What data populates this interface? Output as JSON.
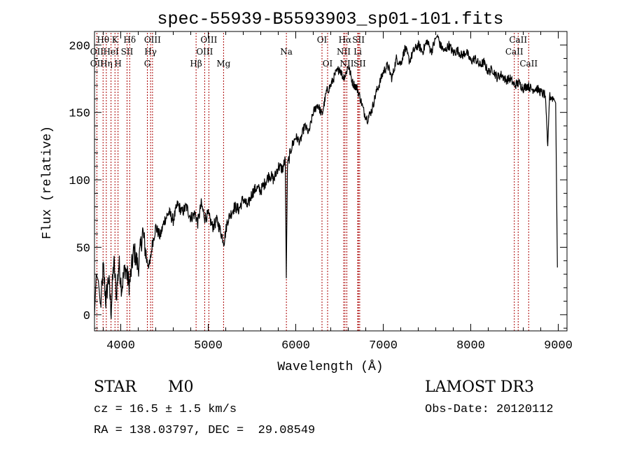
{
  "chart_data": {
    "type": "line",
    "title": "spec-55939-B5593903_sp01-101.fits",
    "xlabel": "Wavelength (Å)",
    "ylabel": "Flux (relative)",
    "xlim": [
      3700,
      9100
    ],
    "ylim": [
      -12,
      210
    ],
    "x_ticks": [
      4000,
      5000,
      6000,
      7000,
      8000,
      9000
    ],
    "y_ticks": [
      0,
      50,
      100,
      150,
      200
    ],
    "series": [
      {
        "name": "flux",
        "points": [
          [
            3700,
            0
          ],
          [
            3720,
            30
          ],
          [
            3745,
            25
          ],
          [
            3770,
            5
          ],
          [
            3800,
            35
          ],
          [
            3830,
            10
          ],
          [
            3860,
            28
          ],
          [
            3890,
            3
          ],
          [
            3920,
            40
          ],
          [
            3950,
            15
          ],
          [
            3980,
            38
          ],
          [
            4010,
            20
          ],
          [
            4050,
            35
          ],
          [
            4100,
            22
          ],
          [
            4150,
            48
          ],
          [
            4200,
            35
          ],
          [
            4250,
            62
          ],
          [
            4300,
            40
          ],
          [
            4330,
            36
          ],
          [
            4360,
            52
          ],
          [
            4400,
            65
          ],
          [
            4450,
            58
          ],
          [
            4500,
            70
          ],
          [
            4550,
            76
          ],
          [
            4600,
            70
          ],
          [
            4650,
            82
          ],
          [
            4700,
            76
          ],
          [
            4750,
            80
          ],
          [
            4800,
            72
          ],
          [
            4850,
            75
          ],
          [
            4880,
            68
          ],
          [
            4920,
            82
          ],
          [
            4960,
            72
          ],
          [
            5000,
            74
          ],
          [
            5050,
            65
          ],
          [
            5100,
            70
          ],
          [
            5150,
            60
          ],
          [
            5180,
            54
          ],
          [
            5220,
            70
          ],
          [
            5260,
            75
          ],
          [
            5300,
            80
          ],
          [
            5350,
            78
          ],
          [
            5400,
            86
          ],
          [
            5450,
            80
          ],
          [
            5500,
            90
          ],
          [
            5550,
            94
          ],
          [
            5600,
            92
          ],
          [
            5650,
            98
          ],
          [
            5700,
            104
          ],
          [
            5750,
            100
          ],
          [
            5800,
            110
          ],
          [
            5850,
            108
          ],
          [
            5880,
            115
          ],
          [
            5892,
            27
          ],
          [
            5905,
            110
          ],
          [
            5950,
            124
          ],
          [
            6000,
            132
          ],
          [
            6050,
            128
          ],
          [
            6100,
            140
          ],
          [
            6150,
            135
          ],
          [
            6200,
            150
          ],
          [
            6250,
            156
          ],
          [
            6300,
            148
          ],
          [
            6350,
            165
          ],
          [
            6400,
            170
          ],
          [
            6450,
            178
          ],
          [
            6500,
            183
          ],
          [
            6540,
            176
          ],
          [
            6570,
            178
          ],
          [
            6600,
            185
          ],
          [
            6650,
            172
          ],
          [
            6700,
            168
          ],
          [
            6740,
            160
          ],
          [
            6780,
            150
          ],
          [
            6820,
            145
          ],
          [
            6870,
            152
          ],
          [
            6920,
            165
          ],
          [
            6960,
            172
          ],
          [
            7000,
            180
          ],
          [
            7050,
            185
          ],
          [
            7100,
            175
          ],
          [
            7150,
            190
          ],
          [
            7200,
            186
          ],
          [
            7250,
            198
          ],
          [
            7300,
            188
          ],
          [
            7350,
            196
          ],
          [
            7400,
            200
          ],
          [
            7450,
            195
          ],
          [
            7500,
            203
          ],
          [
            7550,
            195
          ],
          [
            7600,
            205
          ],
          [
            7620,
            207
          ],
          [
            7650,
            200
          ],
          [
            7700,
            195
          ],
          [
            7750,
            200
          ],
          [
            7800,
            194
          ],
          [
            7850,
            196
          ],
          [
            7900,
            192
          ],
          [
            7950,
            195
          ],
          [
            8000,
            188
          ],
          [
            8050,
            190
          ],
          [
            8100,
            185
          ],
          [
            8150,
            187
          ],
          [
            8200,
            180
          ],
          [
            8250,
            182
          ],
          [
            8300,
            176
          ],
          [
            8350,
            178
          ],
          [
            8400,
            174
          ],
          [
            8450,
            175
          ],
          [
            8500,
            170
          ],
          [
            8550,
            172
          ],
          [
            8600,
            168
          ],
          [
            8650,
            170
          ],
          [
            8700,
            167
          ],
          [
            8750,
            168
          ],
          [
            8800,
            165
          ],
          [
            8850,
            163
          ],
          [
            8880,
            125
          ],
          [
            8900,
            162
          ],
          [
            8950,
            160
          ],
          [
            8970,
            157
          ],
          [
            8990,
            35
          ]
        ]
      }
    ],
    "spectral_lines": [
      {
        "label": "Hθ",
        "wavelength": 3798,
        "row": 1
      },
      {
        "label": "OII",
        "wavelength": 3727,
        "row": 2
      },
      {
        "label": "OII",
        "wavelength": 3727,
        "row": 3
      },
      {
        "label": "Hη",
        "wavelength": 3835,
        "row": 3
      },
      {
        "label": "HeI",
        "wavelength": 3889,
        "row": 2
      },
      {
        "label": "K",
        "wavelength": 3934,
        "row": 1
      },
      {
        "label": "H",
        "wavelength": 3969,
        "row": 3
      },
      {
        "label": "SII",
        "wavelength": 4072,
        "row": 2
      },
      {
        "label": "Hδ",
        "wavelength": 4102,
        "row": 1
      },
      {
        "label": "OIII",
        "wavelength": 4363,
        "row": 1
      },
      {
        "label": "Hγ",
        "wavelength": 4341,
        "row": 2
      },
      {
        "label": "G",
        "wavelength": 4304,
        "row": 3
      },
      {
        "label": "Hβ",
        "wavelength": 4861,
        "row": 3
      },
      {
        "label": "OIII",
        "wavelength": 5007,
        "row": 1
      },
      {
        "label": "OIII",
        "wavelength": 4959,
        "row": 2
      },
      {
        "label": "Mg",
        "wavelength": 5175,
        "row": 3
      },
      {
        "label": "Na",
        "wavelength": 5893,
        "row": 2
      },
      {
        "label": "OI",
        "wavelength": 6300,
        "row": 1
      },
      {
        "label": "OI",
        "wavelength": 6364,
        "row": 3
      },
      {
        "label": "Hα",
        "wavelength": 6563,
        "row": 1
      },
      {
        "label": "SII",
        "wavelength": 6717,
        "row": 1
      },
      {
        "label": "NII",
        "wavelength": 6548,
        "row": 2
      },
      {
        "label": "Li",
        "wavelength": 6708,
        "row": 2
      },
      {
        "label": "NII",
        "wavelength": 6584,
        "row": 3
      },
      {
        "label": "SII",
        "wavelength": 6731,
        "row": 3
      },
      {
        "label": "CaII",
        "wavelength": 8542,
        "row": 1
      },
      {
        "label": "CaII",
        "wavelength": 8498,
        "row": 2
      },
      {
        "label": "CaII",
        "wavelength": 8662,
        "row": 3
      }
    ]
  },
  "info": {
    "object_class": "STAR",
    "subclass": "M0",
    "survey": "LAMOST DR3",
    "redshift": "cz = 16.5 ± 1.5 km/s",
    "obs_date": "Obs-Date: 20120112",
    "coords": "RA = 138.03797, DEC =  29.08549"
  }
}
